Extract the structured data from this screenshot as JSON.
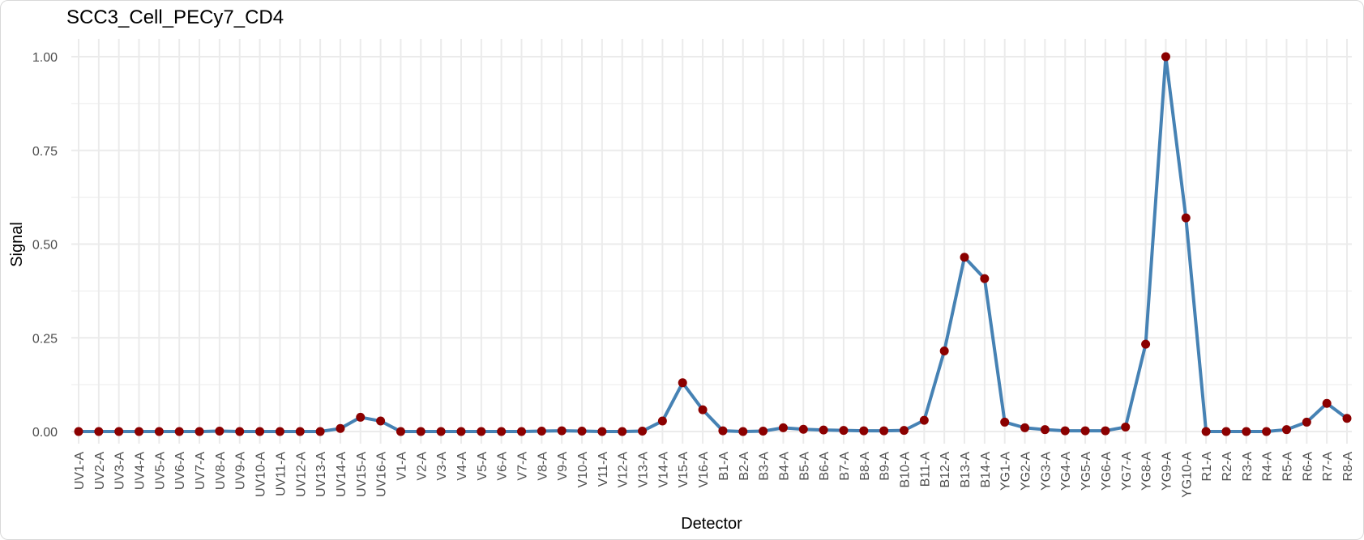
{
  "chart_data": {
    "type": "line",
    "title": "SCC3_Cell_PECy7_CD4",
    "xlabel": "Detector",
    "ylabel": "Signal",
    "ylim": [
      0,
      1
    ],
    "yticks": [
      "0.00",
      "0.25",
      "0.50",
      "0.75",
      "1.00"
    ],
    "grid": true,
    "categories": [
      "UV1-A",
      "UV2-A",
      "UV3-A",
      "UV4-A",
      "UV5-A",
      "UV6-A",
      "UV7-A",
      "UV8-A",
      "UV9-A",
      "UV10-A",
      "UV11-A",
      "UV12-A",
      "UV13-A",
      "UV14-A",
      "UV15-A",
      "UV16-A",
      "V1-A",
      "V2-A",
      "V3-A",
      "V4-A",
      "V5-A",
      "V6-A",
      "V7-A",
      "V8-A",
      "V9-A",
      "V10-A",
      "V11-A",
      "V12-A",
      "V13-A",
      "V14-A",
      "V15-A",
      "V16-A",
      "B1-A",
      "B2-A",
      "B3-A",
      "B4-A",
      "B5-A",
      "B6-A",
      "B7-A",
      "B8-A",
      "B9-A",
      "B10-A",
      "B11-A",
      "B12-A",
      "B13-A",
      "B14-A",
      "YG1-A",
      "YG2-A",
      "YG3-A",
      "YG4-A",
      "YG5-A",
      "YG6-A",
      "YG7-A",
      "YG8-A",
      "YG9-A",
      "YG10-A",
      "R1-A",
      "R2-A",
      "R3-A",
      "R4-A",
      "R5-A",
      "R6-A",
      "R7-A",
      "R8-A"
    ],
    "values": [
      0.0,
      0.0,
      0.0,
      0.0,
      0.0,
      0.0,
      0.0,
      0.001,
      0.0,
      0.0,
      0.0,
      0.0,
      0.0,
      0.008,
      0.038,
      0.028,
      0.0,
      0.0,
      0.0,
      0.0,
      0.0,
      0.0,
      0.0,
      0.001,
      0.002,
      0.001,
      0.0,
      0.0,
      0.001,
      0.028,
      0.13,
      0.058,
      0.002,
      0.0,
      0.001,
      0.01,
      0.006,
      0.004,
      0.003,
      0.002,
      0.002,
      0.003,
      0.03,
      0.215,
      0.465,
      0.408,
      0.025,
      0.01,
      0.005,
      0.002,
      0.002,
      0.002,
      0.012,
      0.233,
      1.0,
      0.57,
      0.0,
      0.0,
      0.0,
      0.0,
      0.005,
      0.025,
      0.075,
      0.035
    ],
    "colors": {
      "line": "#4682b4",
      "point": "#8b0000",
      "grid": "#ebebeb"
    }
  }
}
